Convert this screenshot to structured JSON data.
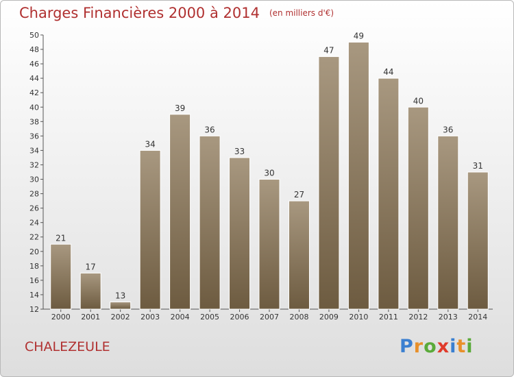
{
  "title": "Charges Financières 2000 à 2014",
  "subtitle": "(en milliers d'€)",
  "commune": "CHALEZEULE",
  "brand": {
    "text": "Proxiti",
    "letters": [
      {
        "c": "P",
        "color": "#3a7fd0"
      },
      {
        "c": "r",
        "color": "#e8902a"
      },
      {
        "c": "o",
        "color": "#5aaa3a"
      },
      {
        "c": "x",
        "color": "#e03a2a"
      },
      {
        "c": "i",
        "color": "#3a7fd0"
      },
      {
        "c": "t",
        "color": "#e8902a"
      },
      {
        "c": "i",
        "color": "#5aaa3a"
      }
    ]
  },
  "colors": {
    "title": "#b03030",
    "bar_top": "#a89880",
    "bar_bottom": "#6d5b40"
  },
  "chart_data": {
    "type": "bar",
    "categories": [
      "2000",
      "2001",
      "2002",
      "2003",
      "2004",
      "2005",
      "2006",
      "2007",
      "2008",
      "2009",
      "2010",
      "2011",
      "2012",
      "2013",
      "2014"
    ],
    "values": [
      21,
      17,
      13,
      34,
      39,
      36,
      33,
      30,
      27,
      47,
      49,
      44,
      40,
      36,
      31
    ],
    "title": "Charges Financières 2000 à 2014",
    "ylim": [
      12,
      50
    ],
    "yticks": [
      12,
      14,
      16,
      18,
      20,
      22,
      24,
      26,
      28,
      30,
      32,
      34,
      36,
      38,
      40,
      42,
      44,
      46,
      48,
      50
    ],
    "grid": false
  }
}
